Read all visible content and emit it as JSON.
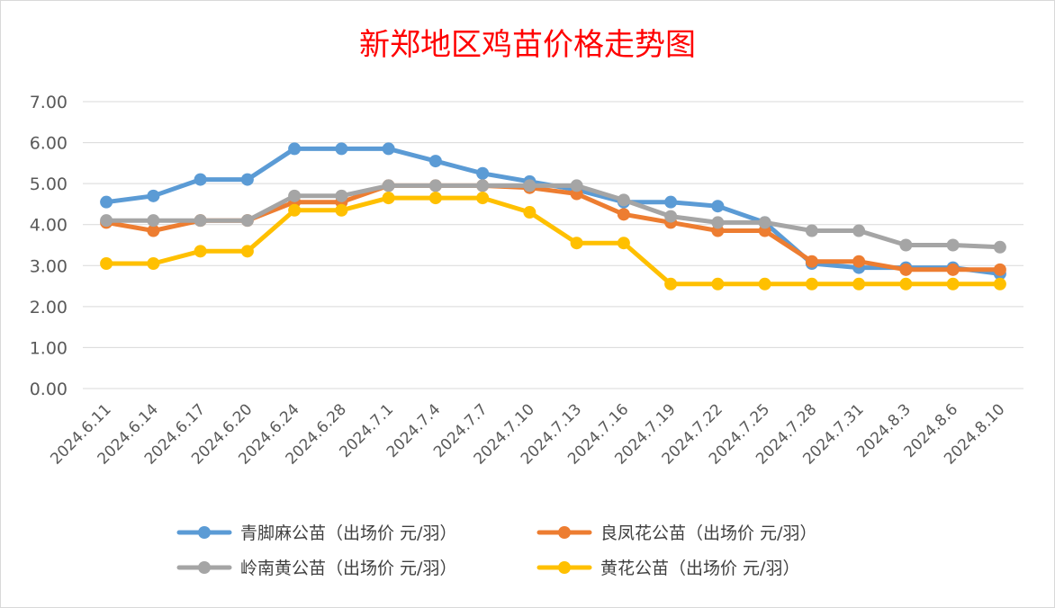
{
  "chart_data": {
    "type": "line",
    "title": "新郑地区鸡苗价格走势图",
    "xlabel": "",
    "ylabel": "",
    "ylim": [
      0,
      7
    ],
    "ytick_labels": [
      "0.00",
      "1.00",
      "2.00",
      "3.00",
      "4.00",
      "5.00",
      "6.00",
      "7.00"
    ],
    "grid": true,
    "legend_position": "bottom",
    "categories": [
      "2024.6.11",
      "2024.6.14",
      "2024.6.17",
      "2024.6.20",
      "2024.6.24",
      "2024.6.28",
      "2024.7.1",
      "2024.7.4",
      "2024.7.7",
      "2024.7.10",
      "2024.7.13",
      "2024.7.16",
      "2024.7.19",
      "2024.7.22",
      "2024.7.25",
      "2024.7.28",
      "2024.7.31",
      "2024.8.3",
      "2024.8.6",
      "2024.8.10"
    ],
    "series": [
      {
        "name": "青脚麻公苗（出场价 元/羽）",
        "color": "#5B9BD5",
        "values": [
          4.55,
          4.7,
          5.1,
          5.1,
          5.85,
          5.85,
          5.85,
          5.55,
          5.25,
          5.05,
          4.85,
          4.55,
          4.55,
          4.45,
          4.05,
          3.05,
          2.95,
          2.95,
          2.95,
          2.8
        ]
      },
      {
        "name": "良凤花公苗（出场价 元/羽）",
        "color": "#ED7D31",
        "values": [
          4.05,
          3.85,
          4.1,
          4.1,
          4.55,
          4.55,
          4.95,
          4.95,
          4.95,
          4.9,
          4.75,
          4.25,
          4.05,
          3.85,
          3.85,
          3.1,
          3.1,
          2.9,
          2.9,
          2.9
        ]
      },
      {
        "name": "岭南黄公苗（出场价 元/羽）",
        "color": "#A5A5A5",
        "values": [
          4.1,
          4.1,
          4.1,
          4.1,
          4.7,
          4.7,
          4.95,
          4.95,
          4.95,
          4.95,
          4.95,
          4.6,
          4.2,
          4.05,
          4.05,
          3.85,
          3.85,
          3.5,
          3.5,
          3.45
        ]
      },
      {
        "name": "黄花公苗（出场价 元/羽）",
        "color": "#FFC000",
        "values": [
          3.05,
          3.05,
          3.35,
          3.35,
          4.35,
          4.35,
          4.65,
          4.65,
          4.65,
          4.3,
          3.55,
          3.55,
          2.55,
          2.55,
          2.55,
          2.55,
          2.55,
          2.55,
          2.55,
          2.55
        ]
      }
    ]
  }
}
